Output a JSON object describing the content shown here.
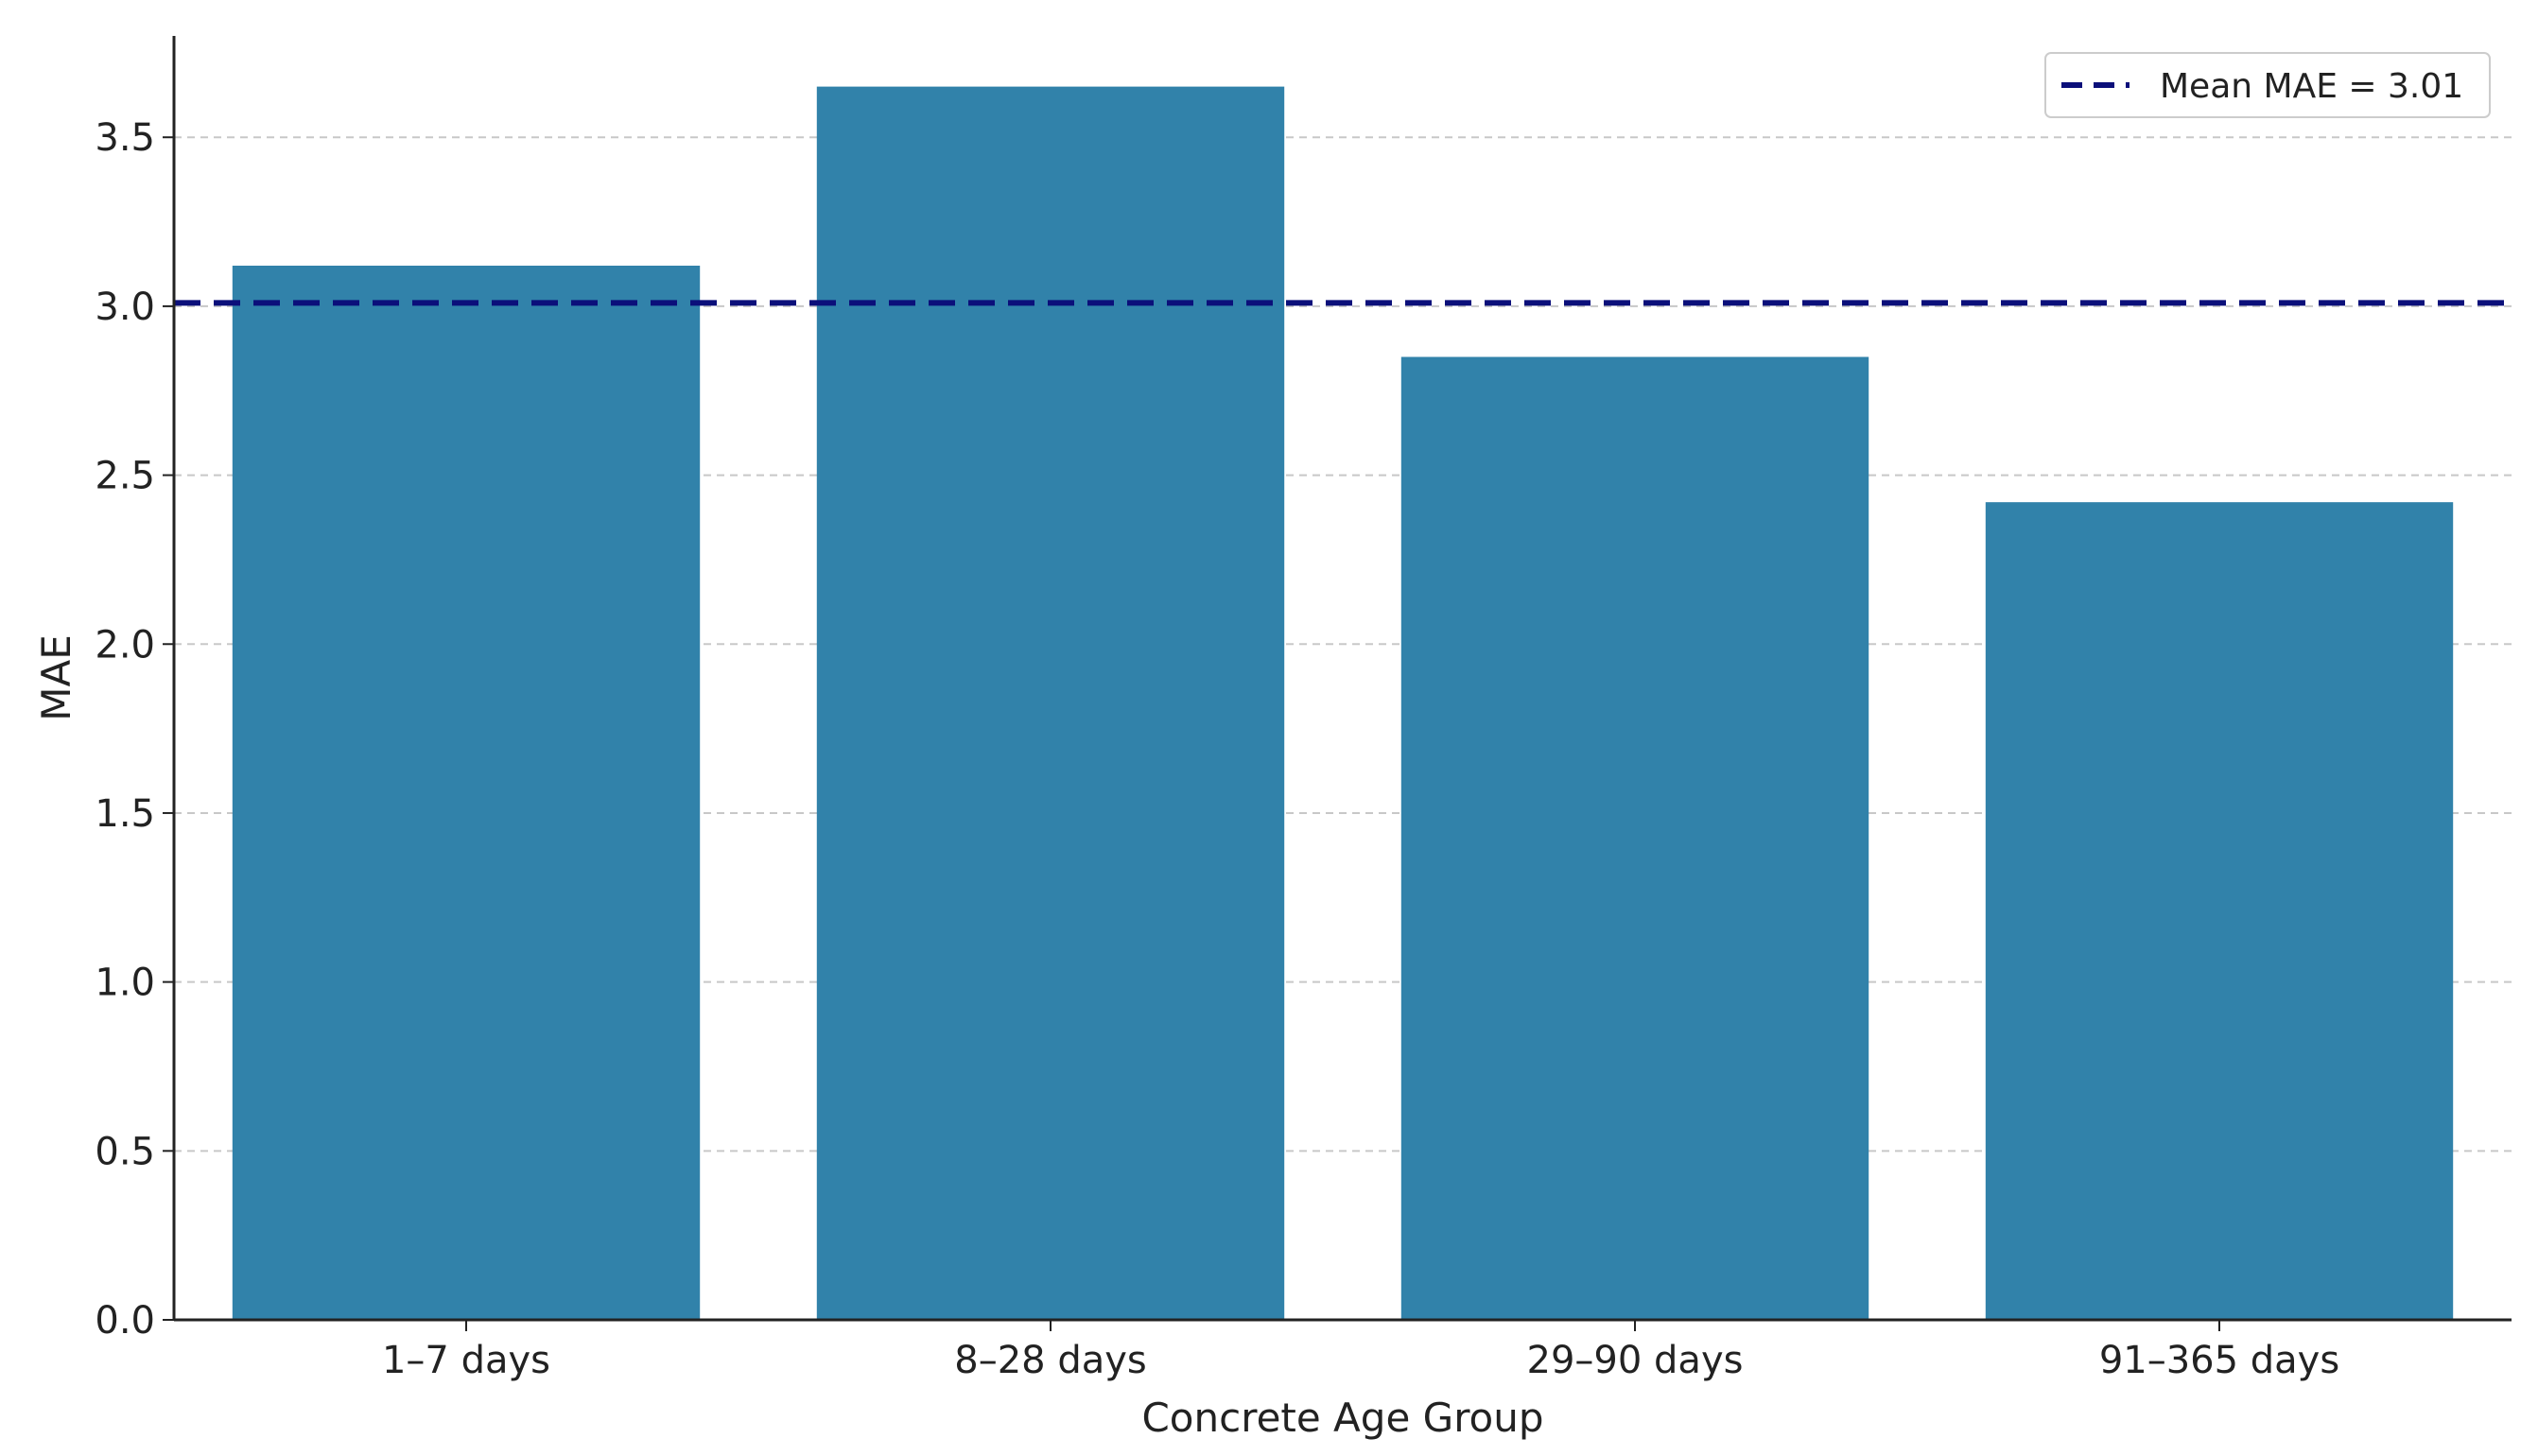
{
  "chart_data": {
    "type": "bar",
    "categories": [
      "1–7 days",
      "8–28 days",
      "29–90 days",
      "91–365 days"
    ],
    "values": [
      3.12,
      3.65,
      2.85,
      2.42
    ],
    "xlabel": "Concrete Age Group",
    "ylabel": "MAE",
    "ylim": [
      0,
      3.8
    ],
    "yticks": [
      "0.0",
      "0.5",
      "1.0",
      "1.5",
      "2.0",
      "2.5",
      "3.0",
      "3.5"
    ],
    "grid": "horizontal dashed",
    "bar_color": "#3182aa",
    "reference_line": {
      "label": "Mean MAE = 3.01",
      "value": 3.01,
      "color": "#0b0f7a",
      "style": "dashed"
    },
    "legend": {
      "position": "top-right",
      "entries": [
        "Mean MAE = 3.01"
      ]
    }
  }
}
